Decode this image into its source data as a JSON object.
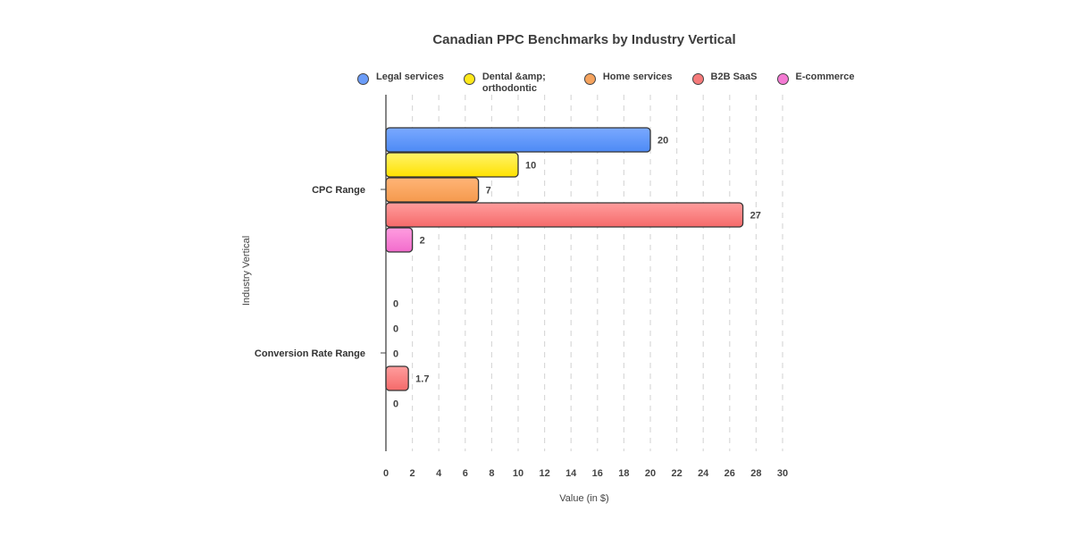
{
  "chart_data": {
    "type": "bar",
    "orientation": "horizontal",
    "title": "Canadian PPC Benchmarks by Industry Vertical",
    "xlabel": "Value (in $)",
    "ylabel": "Industry Vertical",
    "categories": [
      "CPC Range",
      "Conversion Rate Range"
    ],
    "series": [
      {
        "name": "Legal services",
        "values": [
          20,
          0
        ]
      },
      {
        "name": "Dental &amp; orthodontic",
        "values": [
          10,
          0
        ]
      },
      {
        "name": "Home services",
        "values": [
          7,
          0
        ]
      },
      {
        "name": "B2B SaaS",
        "values": [
          27,
          1.7
        ]
      },
      {
        "name": "E-commerce",
        "values": [
          2,
          0
        ]
      }
    ],
    "xlim": [
      0,
      30
    ],
    "xticks": [
      0,
      2,
      4,
      6,
      8,
      10,
      12,
      14,
      16,
      18,
      20,
      22,
      24,
      26,
      28,
      30
    ],
    "grid": "vertical dashed",
    "legend_position": "top",
    "colors": {
      "series_top": [
        "#7aa9ff",
        "#fff36b",
        "#ffb577",
        "#ff9d9d",
        "#ff9de0"
      ],
      "series_bottom": [
        "#4d8af5",
        "#ffe200",
        "#f59a4d",
        "#f56a6a",
        "#f26ccc"
      ],
      "legend": [
        "#6b9cf8",
        "#ffe81a",
        "#f5a35e",
        "#f57a7a",
        "#f47ad3"
      ],
      "stroke": "#333333",
      "grid": "#d9d9d9"
    }
  }
}
